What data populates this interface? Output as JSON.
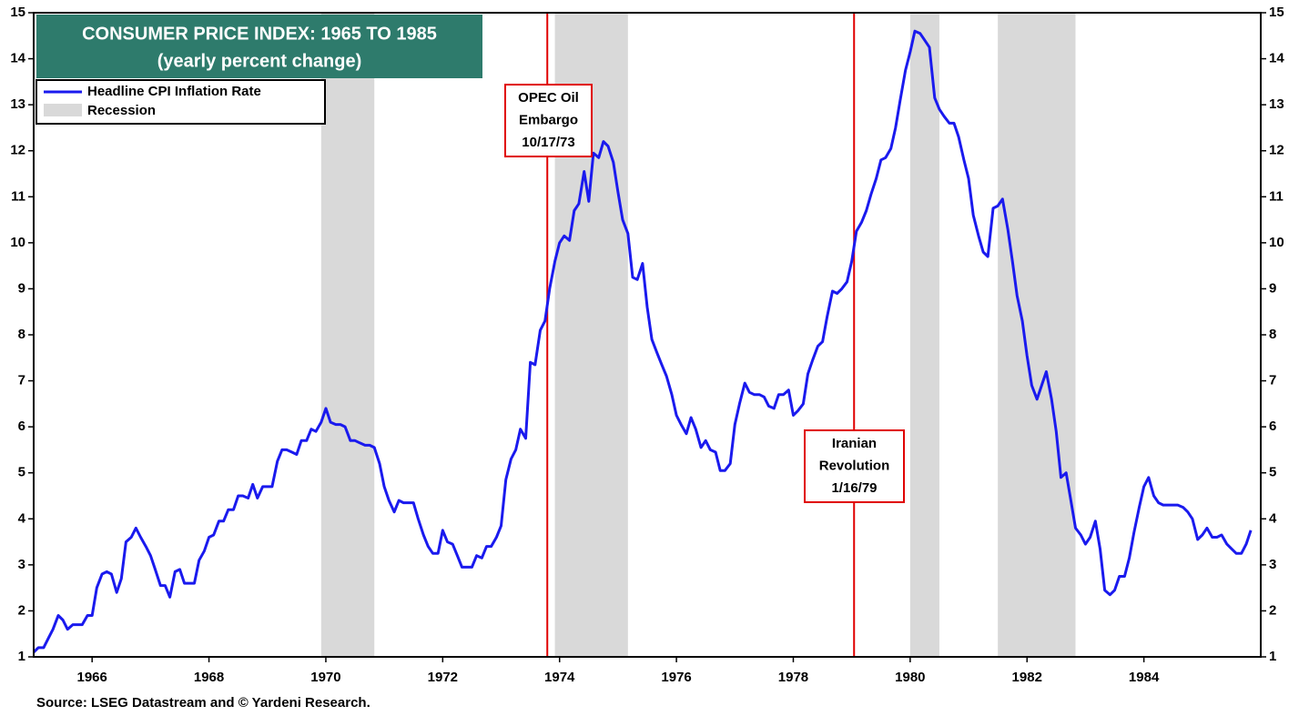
{
  "chart_data": {
    "type": "line",
    "title": [
      "CONSUMER PRICE INDEX: 1965 TO 1985",
      "(yearly percent change)"
    ],
    "source": "Source: LSEG Datastream and © Yardeni Research.",
    "xlim": [
      1965,
      1986
    ],
    "xticks": [
      1966,
      1968,
      1970,
      1972,
      1974,
      1976,
      1978,
      1980,
      1982,
      1984
    ],
    "ylim": [
      1,
      15
    ],
    "yticks": [
      1,
      2,
      3,
      4,
      5,
      6,
      7,
      8,
      9,
      10,
      11,
      12,
      13,
      14,
      15
    ],
    "grid": false,
    "legend": "top-left",
    "recession_name": "Recession",
    "recession_color": "#d9d9d9",
    "recessions": [
      [
        1969.92,
        1970.83
      ],
      [
        1973.92,
        1975.17
      ],
      [
        1980.0,
        1980.5
      ],
      [
        1981.5,
        1982.83
      ]
    ],
    "events": [
      {
        "x": 1973.79,
        "label": [
          "OPEC Oil",
          "Embargo",
          "10/17/73"
        ],
        "color": "#e00000"
      },
      {
        "x": 1979.04,
        "label": [
          "Iranian",
          "Revolution",
          "1/16/79"
        ],
        "color": "#e00000"
      }
    ],
    "x": [
      1965,
      1965.08,
      1965.17,
      1965.25,
      1965.33,
      1965.42,
      1965.5,
      1965.58,
      1965.67,
      1965.75,
      1965.83,
      1965.92,
      1966,
      1966.08,
      1966.17,
      1966.25,
      1966.33,
      1966.42,
      1966.5,
      1966.58,
      1966.67,
      1966.75,
      1966.83,
      1966.92,
      1967,
      1967.08,
      1967.17,
      1967.25,
      1967.33,
      1967.42,
      1967.5,
      1967.58,
      1967.67,
      1967.75,
      1967.83,
      1967.92,
      1968,
      1968.08,
      1968.17,
      1968.25,
      1968.33,
      1968.42,
      1968.5,
      1968.58,
      1968.67,
      1968.75,
      1968.83,
      1968.92,
      1969,
      1969.08,
      1969.17,
      1969.25,
      1969.33,
      1969.42,
      1969.5,
      1969.58,
      1969.67,
      1969.75,
      1969.83,
      1969.92,
      1970,
      1970.08,
      1970.17,
      1970.25,
      1970.33,
      1970.42,
      1970.5,
      1970.58,
      1970.67,
      1970.75,
      1970.83,
      1970.92,
      1971,
      1971.08,
      1971.17,
      1971.25,
      1971.33,
      1971.42,
      1971.5,
      1971.58,
      1971.67,
      1971.75,
      1971.83,
      1971.92,
      1972,
      1972.08,
      1972.17,
      1972.25,
      1972.33,
      1972.42,
      1972.5,
      1972.58,
      1972.67,
      1972.75,
      1972.83,
      1972.92,
      1973,
      1973.08,
      1973.17,
      1973.25,
      1973.33,
      1973.42,
      1973.5,
      1973.58,
      1973.67,
      1973.75,
      1973.83,
      1973.92,
      1974,
      1974.08,
      1974.17,
      1974.25,
      1974.33,
      1974.42,
      1974.5,
      1974.58,
      1974.67,
      1974.75,
      1974.83,
      1974.92,
      1975,
      1975.08,
      1975.17,
      1975.25,
      1975.33,
      1975.42,
      1975.5,
      1975.58,
      1975.67,
      1975.75,
      1975.83,
      1975.92,
      1976,
      1976.08,
      1976.17,
      1976.25,
      1976.33,
      1976.42,
      1976.5,
      1976.58,
      1976.67,
      1976.75,
      1976.83,
      1976.92,
      1977,
      1977.08,
      1977.17,
      1977.25,
      1977.33,
      1977.42,
      1977.5,
      1977.58,
      1977.67,
      1977.75,
      1977.83,
      1977.92,
      1978,
      1978.08,
      1978.17,
      1978.25,
      1978.33,
      1978.42,
      1978.5,
      1978.58,
      1978.67,
      1978.75,
      1978.83,
      1978.92,
      1979,
      1979.08,
      1979.17,
      1979.25,
      1979.33,
      1979.42,
      1979.5,
      1979.58,
      1979.67,
      1979.75,
      1979.83,
      1979.92,
      1980,
      1980.08,
      1980.17,
      1980.25,
      1980.33,
      1980.42,
      1980.5,
      1980.58,
      1980.67,
      1980.75,
      1980.83,
      1980.92,
      1981,
      1981.08,
      1981.17,
      1981.25,
      1981.33,
      1981.42,
      1981.5,
      1981.58,
      1981.67,
      1981.75,
      1981.83,
      1981.92,
      1982,
      1982.08,
      1982.17,
      1982.25,
      1982.33,
      1982.42,
      1982.5,
      1982.58,
      1982.67,
      1982.75,
      1982.83,
      1982.92,
      1983,
      1983.08,
      1983.17,
      1983.25,
      1983.33,
      1983.42,
      1983.5,
      1983.58,
      1983.67,
      1983.75,
      1983.83,
      1983.92,
      1984,
      1984.08,
      1984.17,
      1984.25,
      1984.33,
      1984.42,
      1984.5,
      1984.58,
      1984.67,
      1984.75,
      1984.83,
      1984.92,
      1985,
      1985.08,
      1985.17,
      1985.25,
      1985.33,
      1985.42,
      1985.5,
      1985.58,
      1985.67,
      1985.75,
      1985.83
    ],
    "series": [
      {
        "name": "Headline CPI Inflation Rate",
        "color": "#1a1aee",
        "values": [
          1.1,
          1.2,
          1.2,
          1.4,
          1.6,
          1.9,
          1.8,
          1.6,
          1.7,
          1.7,
          1.7,
          1.9,
          1.9,
          2.5,
          2.8,
          2.85,
          2.8,
          2.4,
          2.7,
          3.5,
          3.6,
          3.8,
          3.6,
          3.4,
          3.2,
          2.9,
          2.55,
          2.55,
          2.3,
          2.85,
          2.9,
          2.6,
          2.6,
          2.6,
          3.1,
          3.3,
          3.6,
          3.65,
          3.95,
          3.95,
          4.2,
          4.2,
          4.5,
          4.5,
          4.45,
          4.75,
          4.45,
          4.7,
          4.7,
          4.7,
          5.25,
          5.5,
          5.5,
          5.45,
          5.4,
          5.7,
          5.7,
          5.95,
          5.9,
          6.1,
          6.4,
          6.1,
          6.05,
          6.05,
          6.0,
          5.7,
          5.7,
          5.65,
          5.6,
          5.6,
          5.55,
          5.2,
          4.7,
          4.4,
          4.15,
          4.4,
          4.35,
          4.35,
          4.35,
          4.0,
          3.65,
          3.4,
          3.25,
          3.25,
          3.75,
          3.5,
          3.45,
          3.2,
          2.95,
          2.95,
          2.95,
          3.2,
          3.15,
          3.4,
          3.4,
          3.6,
          3.85,
          4.85,
          5.3,
          5.5,
          5.95,
          5.75,
          7.4,
          7.35,
          8.1,
          8.3,
          9.0,
          9.6,
          10.0,
          10.15,
          10.05,
          10.7,
          10.85,
          11.55,
          10.9,
          11.95,
          11.85,
          12.2,
          12.1,
          11.75,
          11.1,
          10.5,
          10.2,
          9.25,
          9.2,
          9.55,
          8.6,
          7.9,
          7.6,
          7.35,
          7.1,
          6.7,
          6.25,
          6.05,
          5.85,
          6.2,
          5.95,
          5.55,
          5.7,
          5.5,
          5.45,
          5.05,
          5.05,
          5.2,
          6.05,
          6.5,
          6.95,
          6.75,
          6.7,
          6.7,
          6.65,
          6.45,
          6.4,
          6.7,
          6.7,
          6.8,
          6.25,
          6.35,
          6.5,
          7.15,
          7.45,
          7.75,
          7.85,
          8.4,
          8.95,
          8.9,
          9.0,
          9.15,
          9.6,
          10.25,
          10.45,
          10.7,
          11.05,
          11.4,
          11.8,
          11.85,
          12.05,
          12.5,
          13.1,
          13.75,
          14.15,
          14.6,
          14.55,
          14.4,
          14.25,
          13.15,
          12.9,
          12.75,
          12.6,
          12.6,
          12.3,
          11.8,
          11.4,
          10.6,
          10.15,
          9.8,
          9.7,
          10.75,
          10.8,
          10.95,
          10.3,
          9.6,
          8.85,
          8.3,
          7.55,
          6.9,
          6.6,
          6.9,
          7.2,
          6.6,
          5.9,
          4.9,
          5.0,
          4.4,
          3.8,
          3.65,
          3.45,
          3.6,
          3.95,
          3.35,
          2.45,
          2.35,
          2.45,
          2.75,
          2.75,
          3.15,
          3.7,
          4.25,
          4.7,
          4.9,
          4.5,
          4.35,
          4.3,
          4.3,
          4.3,
          4.3,
          4.25,
          4.15,
          4.0,
          3.55,
          3.65,
          3.8,
          3.6,
          3.6,
          3.65,
          3.45,
          3.35,
          3.25,
          3.25,
          3.45,
          3.75
        ]
      }
    ]
  }
}
